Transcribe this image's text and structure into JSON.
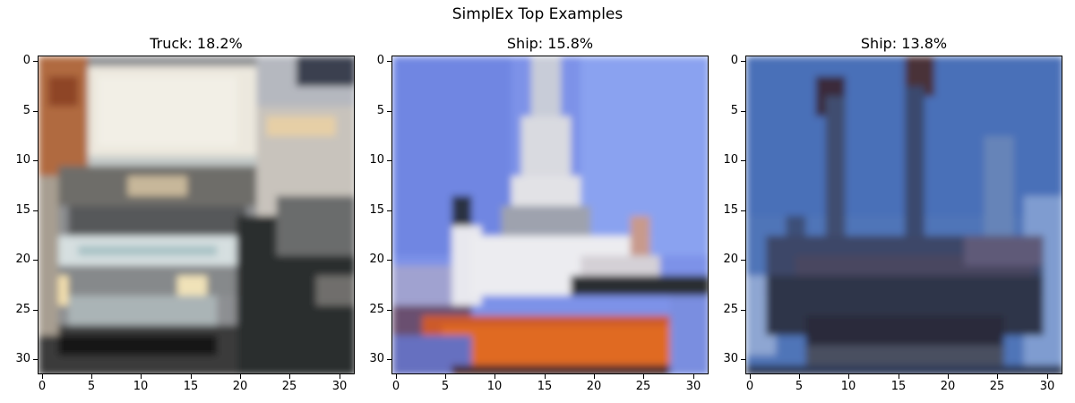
{
  "figure": {
    "suptitle": "SimplEx Top Examples",
    "panels": [
      {
        "title": "Truck: 18.2%",
        "image": "truck-photo"
      },
      {
        "title": "Ship: 15.8%",
        "image": "ship-photo"
      },
      {
        "title": "Ship: 13.8%",
        "image": "sailing-ship-photo"
      }
    ],
    "x_ticks": [
      "0",
      "5",
      "10",
      "15",
      "20",
      "25",
      "30"
    ],
    "y_ticks": [
      "0",
      "5",
      "10",
      "15",
      "20",
      "25",
      "30"
    ]
  }
}
